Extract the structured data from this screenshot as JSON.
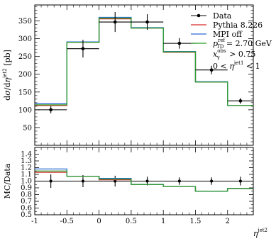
{
  "chart_data": [
    {
      "type": "line",
      "panel": "main",
      "xlabel": "η^jet2",
      "ylabel": "dσ/dη^jet2 [pb]",
      "xlim": [
        -1,
        2.4
      ],
      "ylim": [
        0,
        395
      ],
      "x_edges": [
        -1,
        -0.5,
        0,
        0.5,
        1,
        1.5,
        2,
        2.4
      ],
      "x_ticks": [
        "-1",
        "-0.5",
        "0",
        "0.5",
        "1",
        "1.5",
        "2"
      ],
      "y_ticks": [
        "50",
        "100",
        "150",
        "200",
        "250",
        "300",
        "350"
      ],
      "data": {
        "name": "Data",
        "x": [
          -0.75,
          -0.25,
          0.25,
          0.75,
          1.25,
          1.75,
          2.2
        ],
        "y": [
          100,
          272,
          347,
          347,
          287,
          212,
          125
        ],
        "yerr": [
          10,
          25,
          28,
          22,
          15,
          12,
          8
        ],
        "xerr": [
          0.25,
          0.25,
          0.25,
          0.25,
          0.25,
          0.25,
          0.2
        ]
      },
      "series": [
        {
          "name": "Pythia 8.226",
          "color": "#d62b2b",
          "values": [
            112,
            290,
            356,
            330,
            262,
            178,
            112
          ]
        },
        {
          "name": "MPI off",
          "color": "#2b6bd6",
          "values": [
            117,
            291,
            360,
            331,
            264,
            179,
            112
          ]
        },
        {
          "name": "",
          "color": "#2ca02c",
          "values": [
            114,
            290,
            358,
            330,
            263,
            178,
            112
          ]
        }
      ],
      "annotations": [
        "p_TD^ref = 2.70 GeV",
        "x_γ^obs > 0.75",
        "0 < η^jet1 < 1"
      ]
    },
    {
      "type": "line",
      "panel": "ratio",
      "ylabel": "MC/Data",
      "xlim": [
        -1,
        2.4
      ],
      "ylim": [
        0.5,
        1.5
      ],
      "y_ticks": [
        "0.5",
        "0.6",
        "0.7",
        "0.8",
        "0.9",
        "1.0",
        "1.1",
        "1.2",
        "1.3",
        "1.4"
      ],
      "data_errors": [
        0.1,
        0.09,
        0.08,
        0.065,
        0.055,
        0.055,
        0.065
      ],
      "series": [
        {
          "name": "Pythia 8.226",
          "color": "#d62b2b",
          "values": [
            1.13,
            1.07,
            1.02,
            0.95,
            0.92,
            0.85,
            0.89
          ]
        },
        {
          "name": "MPI off",
          "color": "#2b6bd6",
          "values": [
            1.18,
            1.07,
            1.04,
            0.95,
            0.92,
            0.85,
            0.89
          ]
        },
        {
          "name": "",
          "color": "#2ca02c",
          "values": [
            1.15,
            1.07,
            1.03,
            0.95,
            0.92,
            0.85,
            0.89
          ]
        }
      ]
    }
  ]
}
